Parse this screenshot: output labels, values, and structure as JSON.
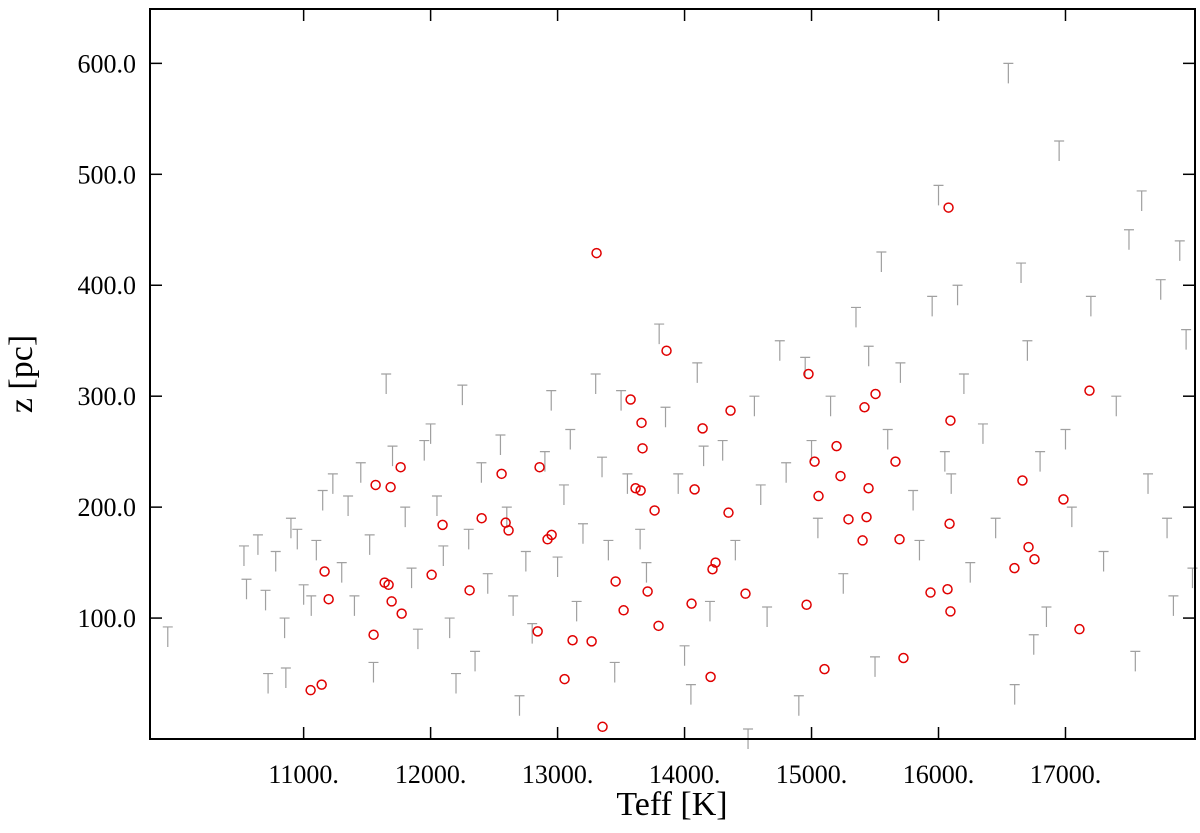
{
  "chart_data": {
    "type": "scatter",
    "x_label": "Teff [K]",
    "y_label": "z [pc]",
    "xlim": [
      9790,
      18020
    ],
    "ylim": [
      -9,
      649
    ],
    "xticks": [
      {
        "value": 11000,
        "label": "11000."
      },
      {
        "value": 12000,
        "label": "12000."
      },
      {
        "value": 13000,
        "label": "13000."
      },
      {
        "value": 14000,
        "label": "14000."
      },
      {
        "value": 15000,
        "label": "15000."
      },
      {
        "value": 16000,
        "label": "16000."
      },
      {
        "value": 17000,
        "label": "17000."
      }
    ],
    "yticks": [
      {
        "value": 100,
        "label": "100.0"
      },
      {
        "value": 200,
        "label": "200.0"
      },
      {
        "value": 300,
        "label": "300.0"
      },
      {
        "value": 400,
        "label": "400.0"
      },
      {
        "value": 500,
        "label": "500.0"
      },
      {
        "value": 600,
        "label": "600.0"
      }
    ],
    "series": [
      {
        "color": "#a0a0a0",
        "marker": "upper-limit",
        "x": [
          9930,
          10530,
          10550,
          10640,
          10700,
          10720,
          10780,
          10850,
          10860,
          10900,
          10950,
          11000,
          11060,
          11100,
          11150,
          11230,
          11300,
          11350,
          11400,
          11450,
          11520,
          11550,
          11650,
          11700,
          11800,
          11850,
          11900,
          11950,
          12000,
          12050,
          12100,
          12150,
          12200,
          12250,
          12300,
          12350,
          12400,
          12450,
          12550,
          12600,
          12650,
          12700,
          12750,
          12800,
          12900,
          12950,
          13000,
          13050,
          13100,
          13150,
          13200,
          13300,
          13350,
          13400,
          13450,
          13500,
          13550,
          13650,
          13700,
          13800,
          13850,
          13950,
          14000,
          14050,
          14100,
          14150,
          14200,
          14300,
          14400,
          14500,
          14550,
          14600,
          14650,
          14750,
          14800,
          14900,
          14950,
          15000,
          15050,
          15150,
          15250,
          15350,
          15450,
          15500,
          15550,
          15600,
          15700,
          15800,
          15850,
          15950,
          16000,
          16050,
          16100,
          16150,
          16200,
          16250,
          16350,
          16450,
          16550,
          16600,
          16650,
          16700,
          16750,
          16800,
          16850,
          16950,
          17000,
          17050,
          17200,
          17300,
          17400,
          17500,
          17550,
          17600,
          17650,
          17750,
          17800,
          17850,
          17900,
          17950,
          18000
        ],
        "values": [
          92,
          165,
          135,
          175,
          125,
          50,
          160,
          100,
          55,
          190,
          180,
          130,
          120,
          170,
          215,
          230,
          150,
          210,
          120,
          240,
          175,
          60,
          320,
          255,
          200,
          145,
          90,
          260,
          275,
          210,
          165,
          100,
          50,
          310,
          180,
          70,
          240,
          140,
          265,
          200,
          120,
          30,
          160,
          95,
          250,
          305,
          155,
          220,
          270,
          115,
          185,
          320,
          245,
          170,
          60,
          305,
          230,
          180,
          150,
          365,
          290,
          230,
          75,
          40,
          330,
          255,
          115,
          260,
          170,
          0,
          300,
          220,
          110,
          350,
          240,
          30,
          335,
          260,
          190,
          300,
          140,
          380,
          345,
          65,
          430,
          270,
          330,
          215,
          170,
          390,
          490,
          250,
          230,
          400,
          320,
          150,
          275,
          190,
          600,
          40,
          420,
          350,
          85,
          250,
          110,
          530,
          270,
          200,
          390,
          160,
          300,
          450,
          70,
          485,
          230,
          405,
          190,
          120,
          440,
          360,
          145
        ]
      },
      {
        "color": "#e00000",
        "marker": "circle",
        "x": [
          11055,
          11142,
          11165,
          11197,
          11567,
          11551,
          11638,
          11669,
          11685,
          11693,
          11764,
          11772,
          12008,
          12094,
          12307,
          12402,
          12559,
          12591,
          12614,
          12858,
          12843,
          12921,
          12953,
          13055,
          13118,
          13268,
          13307,
          13354,
          13457,
          13520,
          13575,
          13614,
          13654,
          13661,
          13669,
          13709,
          13764,
          13795,
          13858,
          14055,
          14079,
          14142,
          14205,
          14220,
          14244,
          14346,
          14362,
          14480,
          14961,
          14976,
          15024,
          15055,
          15102,
          15197,
          15228,
          15291,
          15402,
          15417,
          15433,
          15449,
          15504,
          15693,
          15661,
          15724,
          15937,
          16071,
          16079,
          16087,
          16094,
          16094,
          16598,
          16661,
          16709,
          16756,
          16984,
          17110,
          17189
        ],
        "values": [
          35,
          40,
          142,
          117,
          220,
          85,
          132,
          130,
          218,
          115,
          236,
          104,
          139,
          184,
          125,
          190,
          230,
          186,
          179,
          236,
          88,
          171,
          175,
          45,
          80,
          79,
          429,
          2,
          133,
          107,
          297,
          217,
          215,
          276,
          253,
          124,
          197,
          93,
          341,
          113,
          216,
          271,
          47,
          144,
          150,
          195,
          287,
          122,
          112,
          320,
          241,
          210,
          54,
          255,
          228,
          189,
          170,
          290,
          191,
          217,
          302,
          171,
          241,
          64,
          123,
          126,
          470,
          185,
          278,
          106,
          145,
          224,
          164,
          153,
          207,
          90,
          305
        ]
      }
    ]
  }
}
